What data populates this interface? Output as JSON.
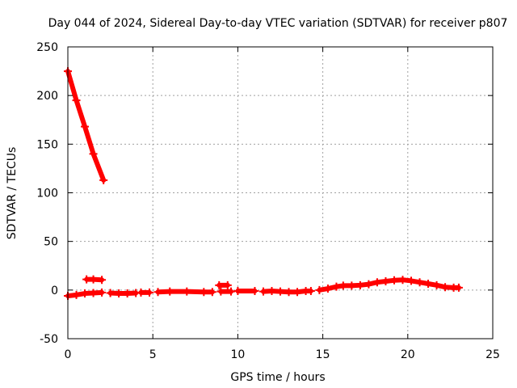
{
  "chart_data": {
    "type": "scatter",
    "title": "Day 044 of 2024, Sidereal Day-to-day VTEC variation (SDTVAR) for receiver p807",
    "xlabel": "GPS time / hours",
    "ylabel": "SDTVAR / TECUs",
    "xlim": [
      0,
      25
    ],
    "ylim": [
      -50,
      250
    ],
    "xticks": [
      0,
      5,
      10,
      15,
      20,
      25
    ],
    "yticks": [
      -50,
      0,
      50,
      100,
      150,
      200,
      250
    ],
    "xtick_labels": [
      "0",
      "5",
      "10",
      "15",
      "20",
      "25"
    ],
    "ytick_labels": [
      "-50",
      "0",
      "50",
      "100",
      "150",
      "200",
      "250"
    ],
    "grid": true,
    "series": [
      {
        "name": "SDTVAR",
        "color": "#ff0000",
        "marker": "plus",
        "segments": [
          [
            [
              0.0,
              225
            ],
            [
              0.5,
              195
            ],
            [
              1.0,
              168
            ],
            [
              1.5,
              140
            ],
            [
              2.1,
              113
            ]
          ],
          [
            [
              0.0,
              -6
            ],
            [
              0.5,
              -5
            ],
            [
              1.0,
              -3.5
            ],
            [
              1.5,
              -3
            ],
            [
              2.0,
              -2.5
            ]
          ],
          [
            [
              1.1,
              11
            ],
            [
              1.5,
              11
            ],
            [
              2.0,
              10.5
            ]
          ],
          [
            [
              2.5,
              -3
            ],
            [
              3.0,
              -3.5
            ],
            [
              3.5,
              -3.5
            ],
            [
              4.0,
              -3
            ]
          ],
          [
            [
              4.3,
              -2.5
            ],
            [
              4.8,
              -2.5
            ]
          ],
          [
            [
              5.3,
              -2
            ],
            [
              6.0,
              -1.5
            ],
            [
              7.0,
              -1.5
            ],
            [
              8.0,
              -2
            ],
            [
              8.5,
              -2
            ]
          ],
          [
            [
              8.9,
              5
            ],
            [
              9.4,
              5
            ]
          ],
          [
            [
              9.0,
              -1.5
            ],
            [
              9.6,
              -1.5
            ]
          ],
          [
            [
              10.0,
              -1
            ],
            [
              11.0,
              -1
            ]
          ],
          [
            [
              11.5,
              -1.5
            ],
            [
              12.0,
              -1
            ],
            [
              12.5,
              -1.5
            ],
            [
              13.0,
              -2
            ],
            [
              13.5,
              -2
            ],
            [
              14.0,
              -1
            ],
            [
              14.3,
              -1
            ]
          ],
          [
            [
              14.8,
              0
            ],
            [
              15.3,
              1.5
            ],
            [
              15.8,
              3.5
            ],
            [
              16.2,
              4.5
            ],
            [
              16.7,
              4.5
            ],
            [
              17.2,
              5
            ],
            [
              17.7,
              6
            ],
            [
              18.2,
              8
            ],
            [
              18.7,
              9
            ],
            [
              19.2,
              10
            ],
            [
              19.7,
              10.5
            ],
            [
              20.2,
              9.5
            ],
            [
              20.7,
              8
            ],
            [
              21.2,
              6.5
            ],
            [
              21.7,
              5
            ],
            [
              22.2,
              3
            ],
            [
              22.7,
              2.5
            ],
            [
              23.0,
              2.5
            ]
          ]
        ]
      }
    ]
  }
}
